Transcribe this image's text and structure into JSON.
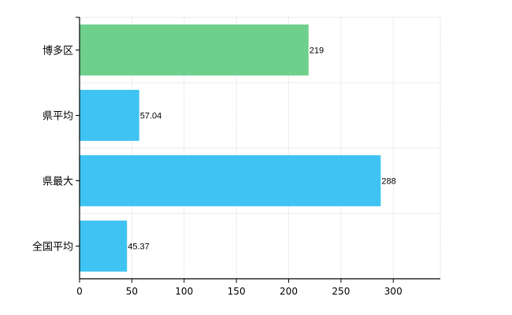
{
  "chart_data": {
    "type": "bar",
    "orientation": "horizontal",
    "categories": [
      "博多区",
      "県平均",
      "県最大",
      "全国平均"
    ],
    "values": [
      219,
      57.04,
      288,
      45.37
    ],
    "value_labels": [
      "219",
      "57.04",
      "288",
      "45.37"
    ],
    "colors": [
      "#6fd08c",
      "#3ec3f3",
      "#3ec3f3",
      "#3ec3f3"
    ],
    "xlim": [
      0,
      345
    ],
    "xticks": [
      0,
      50,
      100,
      150,
      200,
      250,
      300
    ],
    "xtick_labels": [
      "0",
      "50",
      "100",
      "150",
      "200",
      "250",
      "300"
    ],
    "grid": true,
    "title": "",
    "xlabel": "",
    "ylabel": ""
  }
}
